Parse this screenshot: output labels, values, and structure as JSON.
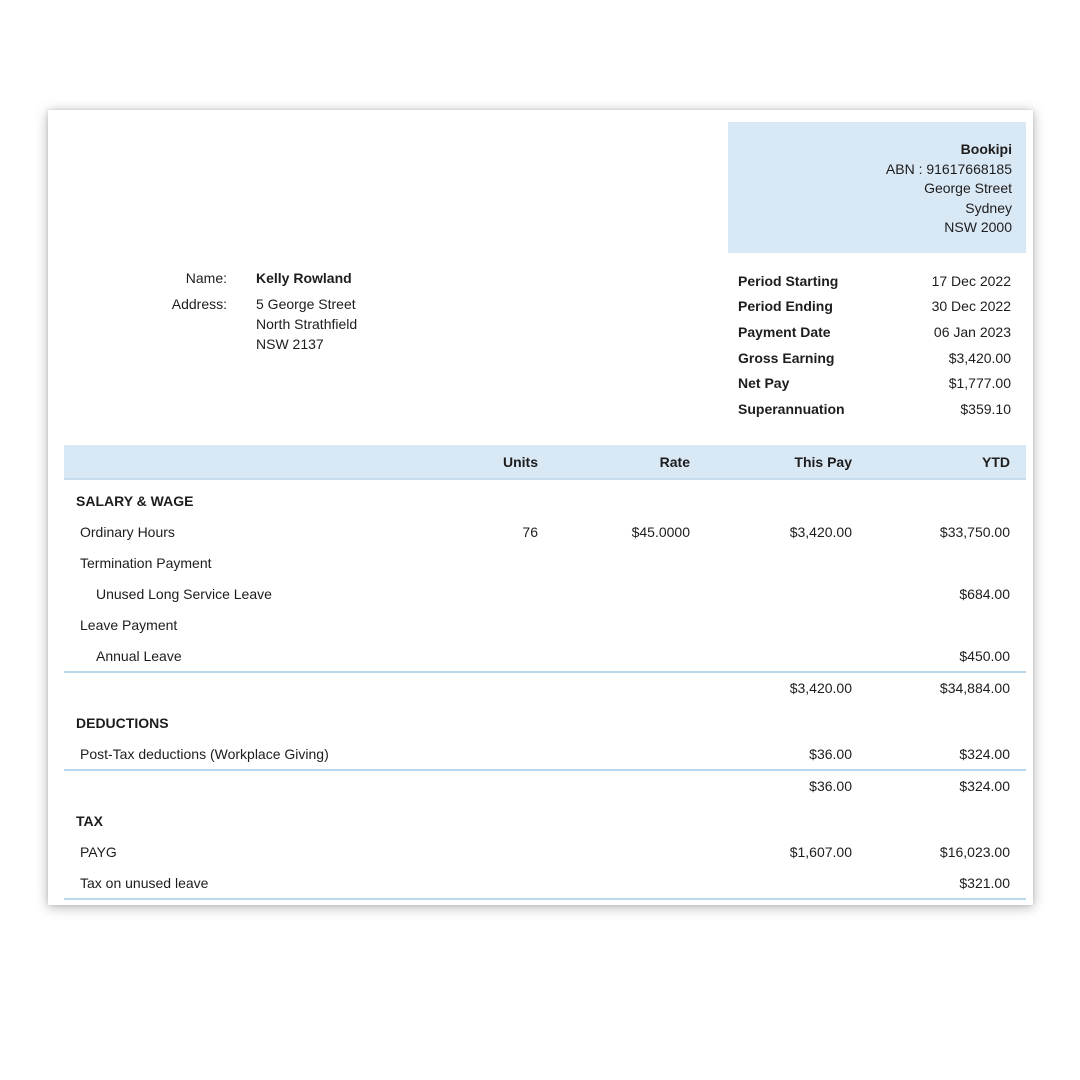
{
  "company": {
    "name": "Bookipi",
    "abn": "ABN : 91617668185",
    "address_lines": [
      "George Street",
      "Sydney",
      "NSW 2000"
    ]
  },
  "employee": {
    "name_label": "Name:",
    "name": "Kelly Rowland",
    "address_label": "Address:",
    "address_lines": [
      "5 George Street",
      "North Strathfield",
      "NSW 2137"
    ]
  },
  "pay_summary": [
    {
      "label": "Period Starting",
      "value": "17 Dec 2022"
    },
    {
      "label": "Period Ending",
      "value": "30 Dec 2022"
    },
    {
      "label": "Payment Date",
      "value": "06 Jan 2023"
    },
    {
      "label": "Gross Earning",
      "value": "$3,420.00"
    },
    {
      "label": "Net Pay",
      "value": "$1,777.00"
    },
    {
      "label": "Superannuation",
      "value": "$359.10"
    }
  ],
  "table": {
    "headers": [
      "Units",
      "Rate",
      "This Pay",
      "YTD"
    ],
    "rows": [
      {
        "type": "section",
        "label": "SALARY & WAGE"
      },
      {
        "type": "item",
        "label": "Ordinary Hours",
        "units": "76",
        "rate": "$45.0000",
        "this_pay": "$3,420.00",
        "ytd": "$33,750.00"
      },
      {
        "type": "item",
        "label": "Termination Payment"
      },
      {
        "type": "subitem",
        "label": "Unused Long Service Leave",
        "ytd": "$684.00"
      },
      {
        "type": "item",
        "label": "Leave Payment"
      },
      {
        "type": "subitem",
        "label": "Annual Leave",
        "ytd": "$450.00"
      },
      {
        "type": "subtotal",
        "label": "",
        "this_pay": "$3,420.00",
        "ytd": "$34,884.00"
      },
      {
        "type": "section",
        "label": "DEDUCTIONS"
      },
      {
        "type": "item",
        "label": "Post-Tax deductions (Workplace Giving)",
        "this_pay": "$36.00",
        "ytd": "$324.00"
      },
      {
        "type": "subtotal",
        "label": "",
        "this_pay": "$36.00",
        "ytd": "$324.00"
      },
      {
        "type": "section",
        "label": "TAX"
      },
      {
        "type": "item",
        "label": "PAYG",
        "this_pay": "$1,607.00",
        "ytd": "$16,023.00"
      },
      {
        "type": "item",
        "label": "Tax on unused leave",
        "ytd": "$321.00"
      }
    ]
  },
  "colors": {
    "accent_bg": "#d9e8f5",
    "separator": "#b9d8ee",
    "text": "#1d1d1d"
  }
}
